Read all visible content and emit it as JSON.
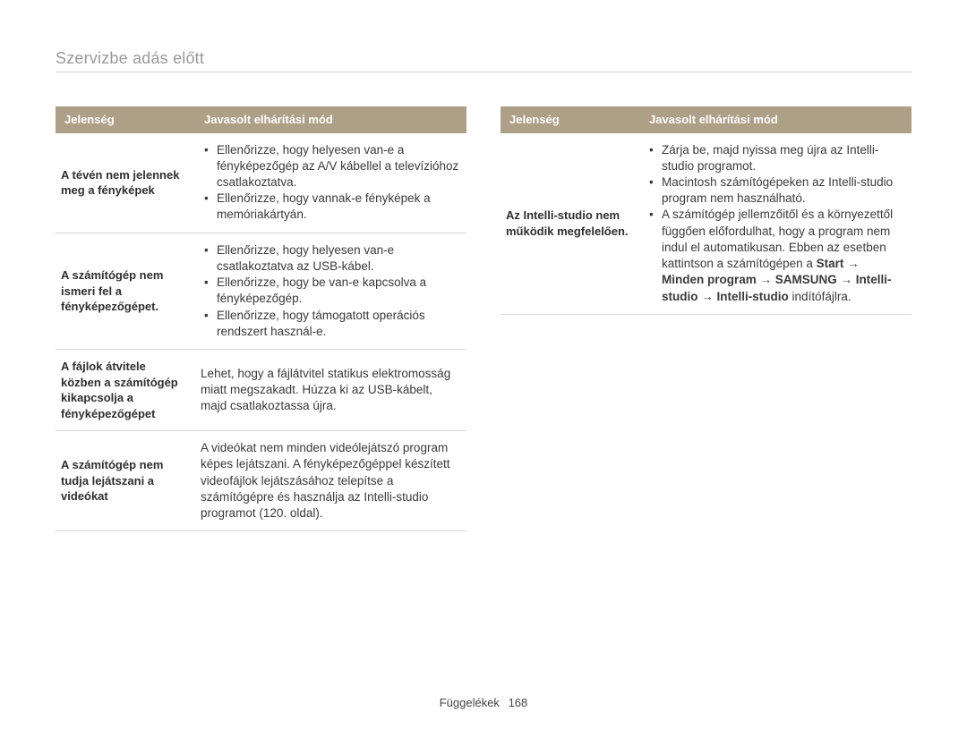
{
  "page_title": "Szervizbe adás előtt",
  "headers": {
    "symptom": "Jelenség",
    "solution": "Javasolt elhárítási mód"
  },
  "left_table": [
    {
      "symptom": "A tévén nem jelennek meg a fényképek",
      "type": "list",
      "items": [
        "Ellenőrizze, hogy helyesen van-e a fényképezőgép az A/V kábellel a televízióhoz csatlakoztatva.",
        "Ellenőrizze, hogy vannak-e fényképek a memóriakártyán."
      ]
    },
    {
      "symptom": "A számítógép nem ismeri fel a fényképezőgépet.",
      "type": "list",
      "items": [
        "Ellenőrizze, hogy helyesen van-e csatlakoztatva az USB-kábel.",
        "Ellenőrizze, hogy be van-e kapcsolva a fényképezőgép.",
        "Ellenőrizze, hogy támogatott operációs rendszert használ-e."
      ]
    },
    {
      "symptom": "A fájlok átvitele közben a számítógép kikapcsolja a fényképezőgépet",
      "type": "text",
      "text": "Lehet, hogy a fájlátvitel statikus elektromosság miatt megszakadt. Húzza ki az USB-kábelt, majd csatlakoztassa újra."
    },
    {
      "symptom": "A számítógép nem tudja lejátszani a videókat",
      "type": "text",
      "text": "A videókat nem minden videólejátszó program képes lejátszani. A fényképezőgéppel készített videofájlok lejátszásához telepítse a számítógépre és használja az Intelli-studio programot (120. oldal)."
    }
  ],
  "right_table": [
    {
      "symptom": "Az Intelli-studio nem működik megfelelően.",
      "type": "html",
      "items": [
        {
          "plain": "Zárja be, majd nyissa meg újra az Intelli-studio programot."
        },
        {
          "plain": "Macintosh számítógépeken az Intelli-studio program nem használható."
        },
        {
          "pre": "A számítógép jellemzőitől és a környezettől függően előfordulhat, hogy a program nem indul el automatikusan. Ebben az esetben kattintson a számítógépen a ",
          "bold": "Start → Minden program → SAMSUNG → Intelli-studio → Intelli-studio",
          "post": " indítófájlra."
        }
      ]
    }
  ],
  "footer": {
    "label": "Függelékek",
    "page": "168"
  }
}
